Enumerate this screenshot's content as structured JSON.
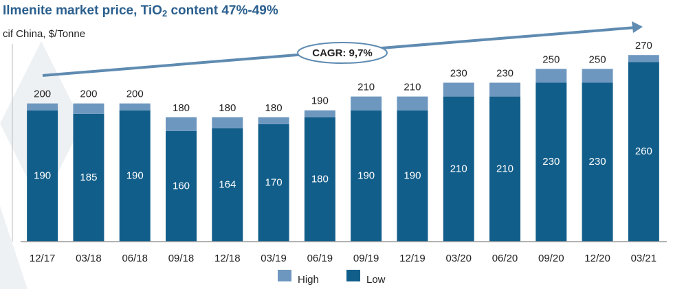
{
  "chart_data": {
    "type": "bar",
    "title": [
      "Ilmenite market price, TiO",
      "2",
      " content 47%-49%"
    ],
    "subtitle": "cif China, $/Tonne",
    "annotation": "CAGR: 9,7%",
    "categories": [
      "12/17",
      "03/18",
      "06/18",
      "09/18",
      "12/18",
      "03/19",
      "06/19",
      "09/19",
      "12/19",
      "03/20",
      "06/20",
      "09/20",
      "12/20",
      "03/21"
    ],
    "series": [
      {
        "name": "Low",
        "color": "#125e8a",
        "values": [
          190,
          185,
          190,
          160,
          164,
          170,
          180,
          190,
          190,
          210,
          210,
          230,
          230,
          260
        ]
      },
      {
        "name": "High",
        "color": "#6e97bf",
        "values": [
          200,
          200,
          200,
          180,
          180,
          180,
          190,
          210,
          210,
          230,
          230,
          250,
          250,
          270
        ]
      }
    ],
    "ylim": [
      0,
      300
    ],
    "legend": "bottom"
  }
}
